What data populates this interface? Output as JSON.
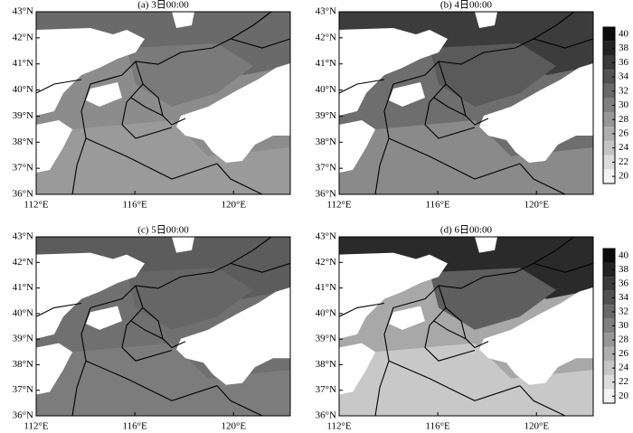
{
  "panels": [
    {
      "title": "(a) 3日00:00",
      "xlim": [
        112,
        122.3
      ],
      "ylim": [
        36,
        43
      ],
      "xticks": [
        {
          "value": 112,
          "label": "112°E"
        },
        {
          "value": 116,
          "label": "116°E"
        },
        {
          "value": 120,
          "label": "120°E"
        }
      ],
      "yticks": [
        {
          "value": 36,
          "label": "36°N"
        },
        {
          "value": 37,
          "label": "37°N"
        },
        {
          "value": 38,
          "label": "38°N"
        },
        {
          "value": 39,
          "label": "39°N"
        },
        {
          "value": 40,
          "label": "40°N"
        },
        {
          "value": 41,
          "label": "41°N"
        },
        {
          "value": 42,
          "label": "42°N"
        },
        {
          "value": 43,
          "label": "43°N"
        }
      ]
    },
    {
      "title": "(b) 4日00:00",
      "xlim": [
        112,
        122.3
      ],
      "ylim": [
        36,
        43
      ],
      "xticks": [
        {
          "value": 112,
          "label": "112°E"
        },
        {
          "value": 116,
          "label": "116°E"
        },
        {
          "value": 120,
          "label": "120°E"
        }
      ],
      "yticks": [
        {
          "value": 36,
          "label": "36°N"
        },
        {
          "value": 37,
          "label": "37°N"
        },
        {
          "value": 38,
          "label": "38°N"
        },
        {
          "value": 39,
          "label": "39°N"
        },
        {
          "value": 40,
          "label": "40°N"
        },
        {
          "value": 41,
          "label": "41°N"
        },
        {
          "value": 42,
          "label": "42°N"
        },
        {
          "value": 43,
          "label": "43°N"
        }
      ],
      "colorbar": {
        "lim": [
          19,
          41
        ],
        "ticks": [
          20,
          22,
          24,
          26,
          28,
          30,
          32,
          34,
          36,
          38,
          40
        ]
      }
    },
    {
      "title": "(c) 5日00:00",
      "xlim": [
        112,
        122.3
      ],
      "ylim": [
        36,
        43
      ],
      "xticks": [
        {
          "value": 112,
          "label": "112°E"
        },
        {
          "value": 116,
          "label": "116°E"
        },
        {
          "value": 120,
          "label": "120°E"
        }
      ],
      "yticks": [
        {
          "value": 36,
          "label": "36°N"
        },
        {
          "value": 37,
          "label": "37°N"
        },
        {
          "value": 38,
          "label": "38°N"
        },
        {
          "value": 39,
          "label": "39°N"
        },
        {
          "value": 40,
          "label": "40°N"
        },
        {
          "value": 41,
          "label": "41°N"
        },
        {
          "value": 42,
          "label": "42°N"
        },
        {
          "value": 43,
          "label": "43°N"
        }
      ]
    },
    {
      "title": "(d) 6日00:00",
      "xlim": [
        112,
        122.3
      ],
      "ylim": [
        36,
        43
      ],
      "xticks": [
        {
          "value": 112,
          "label": "112°E"
        },
        {
          "value": 116,
          "label": "116°E"
        },
        {
          "value": 120,
          "label": "120°E"
        }
      ],
      "yticks": [
        {
          "value": 36,
          "label": "36°N"
        },
        {
          "value": 37,
          "label": "37°N"
        },
        {
          "value": 38,
          "label": "38°N"
        },
        {
          "value": 39,
          "label": "39°N"
        },
        {
          "value": 40,
          "label": "40°N"
        },
        {
          "value": 41,
          "label": "41°N"
        },
        {
          "value": 42,
          "label": "42°N"
        },
        {
          "value": 43,
          "label": "43°N"
        }
      ],
      "colorbar": {
        "lim": [
          19,
          41
        ],
        "ticks": [
          20,
          22,
          24,
          26,
          28,
          30,
          32,
          34,
          36,
          38,
          40
        ]
      }
    }
  ]
}
